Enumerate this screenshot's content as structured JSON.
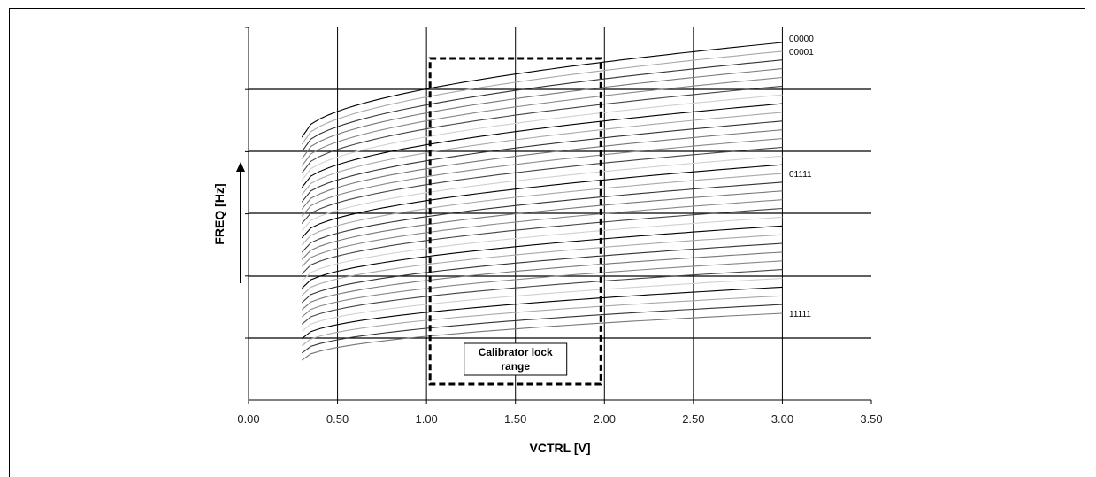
{
  "chart_data": {
    "type": "line",
    "xlabel": "VCTRL [V]",
    "ylabel": "FREQ [Hz]",
    "xlim": [
      0.0,
      3.5
    ],
    "x_ticks": [
      "0.00",
      "0.50",
      "1.00",
      "1.50",
      "2.00",
      "2.50",
      "3.00",
      "3.50"
    ],
    "y_ticks": [],
    "grid": true,
    "x": [
      0.3,
      0.6,
      0.9,
      1.2,
      1.5,
      1.8,
      2.1,
      2.4,
      2.7,
      3.0
    ],
    "series_count": 32,
    "series_labels": [
      {
        "index": 0,
        "name": "00000"
      },
      {
        "index": 1,
        "name": "00001"
      },
      {
        "index": 15,
        "name": "01111"
      },
      {
        "index": 31,
        "name": "11111"
      }
    ],
    "annotation": {
      "text_lines": [
        "Calibrator lock",
        "range"
      ],
      "x_range": [
        1.02,
        1.98
      ]
    }
  }
}
